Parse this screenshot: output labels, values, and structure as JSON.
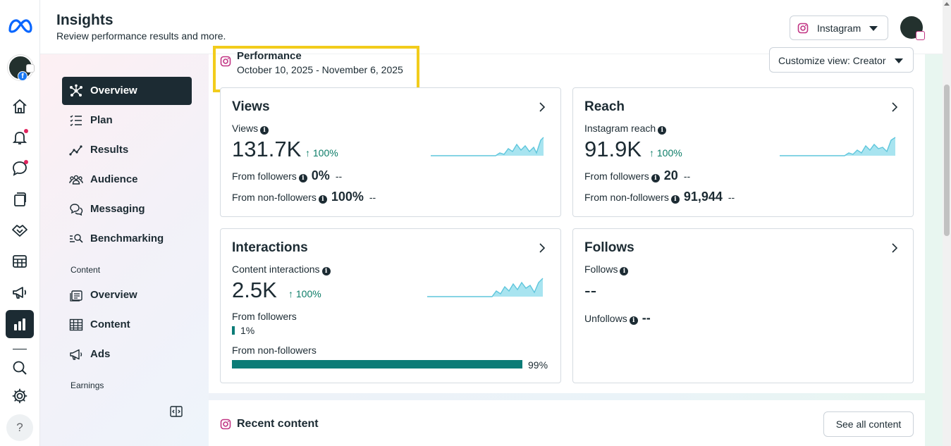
{
  "header": {
    "title": "Insights",
    "subtitle": "Review performance results and more.",
    "platform_label": "Instagram"
  },
  "sidebar": {
    "items": [
      {
        "label": "Overview",
        "icon": "network-icon",
        "active": true
      },
      {
        "label": "Plan",
        "icon": "checklist-icon"
      },
      {
        "label": "Results",
        "icon": "results-line-icon"
      },
      {
        "label": "Audience",
        "icon": "people-icon"
      },
      {
        "label": "Messaging",
        "icon": "chat-bubbles-icon"
      },
      {
        "label": "Benchmarking",
        "icon": "benchmark-search-icon"
      }
    ],
    "content_label": "Content",
    "content_items": [
      {
        "label": "Overview",
        "icon": "content-overview-icon"
      },
      {
        "label": "Content",
        "icon": "grid-table-icon"
      },
      {
        "label": "Ads",
        "icon": "megaphone-icon"
      }
    ],
    "earnings_label": "Earnings"
  },
  "performance": {
    "title": "Performance",
    "date_range": "October 10, 2025 - November 6, 2025",
    "customize_label": "Customize view: Creator"
  },
  "cards": {
    "views": {
      "title": "Views",
      "metric_label": "Views",
      "value": "131.7K",
      "delta": "↑ 100%",
      "rows": [
        {
          "label": "From followers",
          "value": "0%",
          "dash": "--"
        },
        {
          "label": "From non-followers",
          "value": "100%",
          "dash": "--"
        }
      ]
    },
    "reach": {
      "title": "Reach",
      "metric_label": "Instagram reach",
      "value": "91.9K",
      "delta": "↑ 100%",
      "rows": [
        {
          "label": "From followers",
          "value": "20",
          "dash": "--"
        },
        {
          "label": "From non-followers",
          "value": "91,944",
          "dash": "--"
        }
      ]
    },
    "interactions": {
      "title": "Interactions",
      "metric_label": "Content interactions",
      "value": "2.5K",
      "delta": "↑ 100%",
      "from_followers_label": "From followers",
      "from_followers_pct": "1%",
      "from_followers_fraction": 0.01,
      "from_non_followers_label": "From non-followers",
      "from_non_followers_pct": "99%",
      "from_non_followers_fraction": 0.99
    },
    "follows": {
      "title": "Follows",
      "metric_label": "Follows",
      "value": "--",
      "unfollows_label": "Unfollows",
      "unfollows_value": "--"
    }
  },
  "recent": {
    "title": "Recent content",
    "see_all_label": "See all content"
  },
  "colors": {
    "accent": "#1c2b33",
    "positive": "#0b7c67",
    "bar": "#0b7c77",
    "spark_fill": "#a8e4f0",
    "highlight": "#f2cc1c"
  }
}
